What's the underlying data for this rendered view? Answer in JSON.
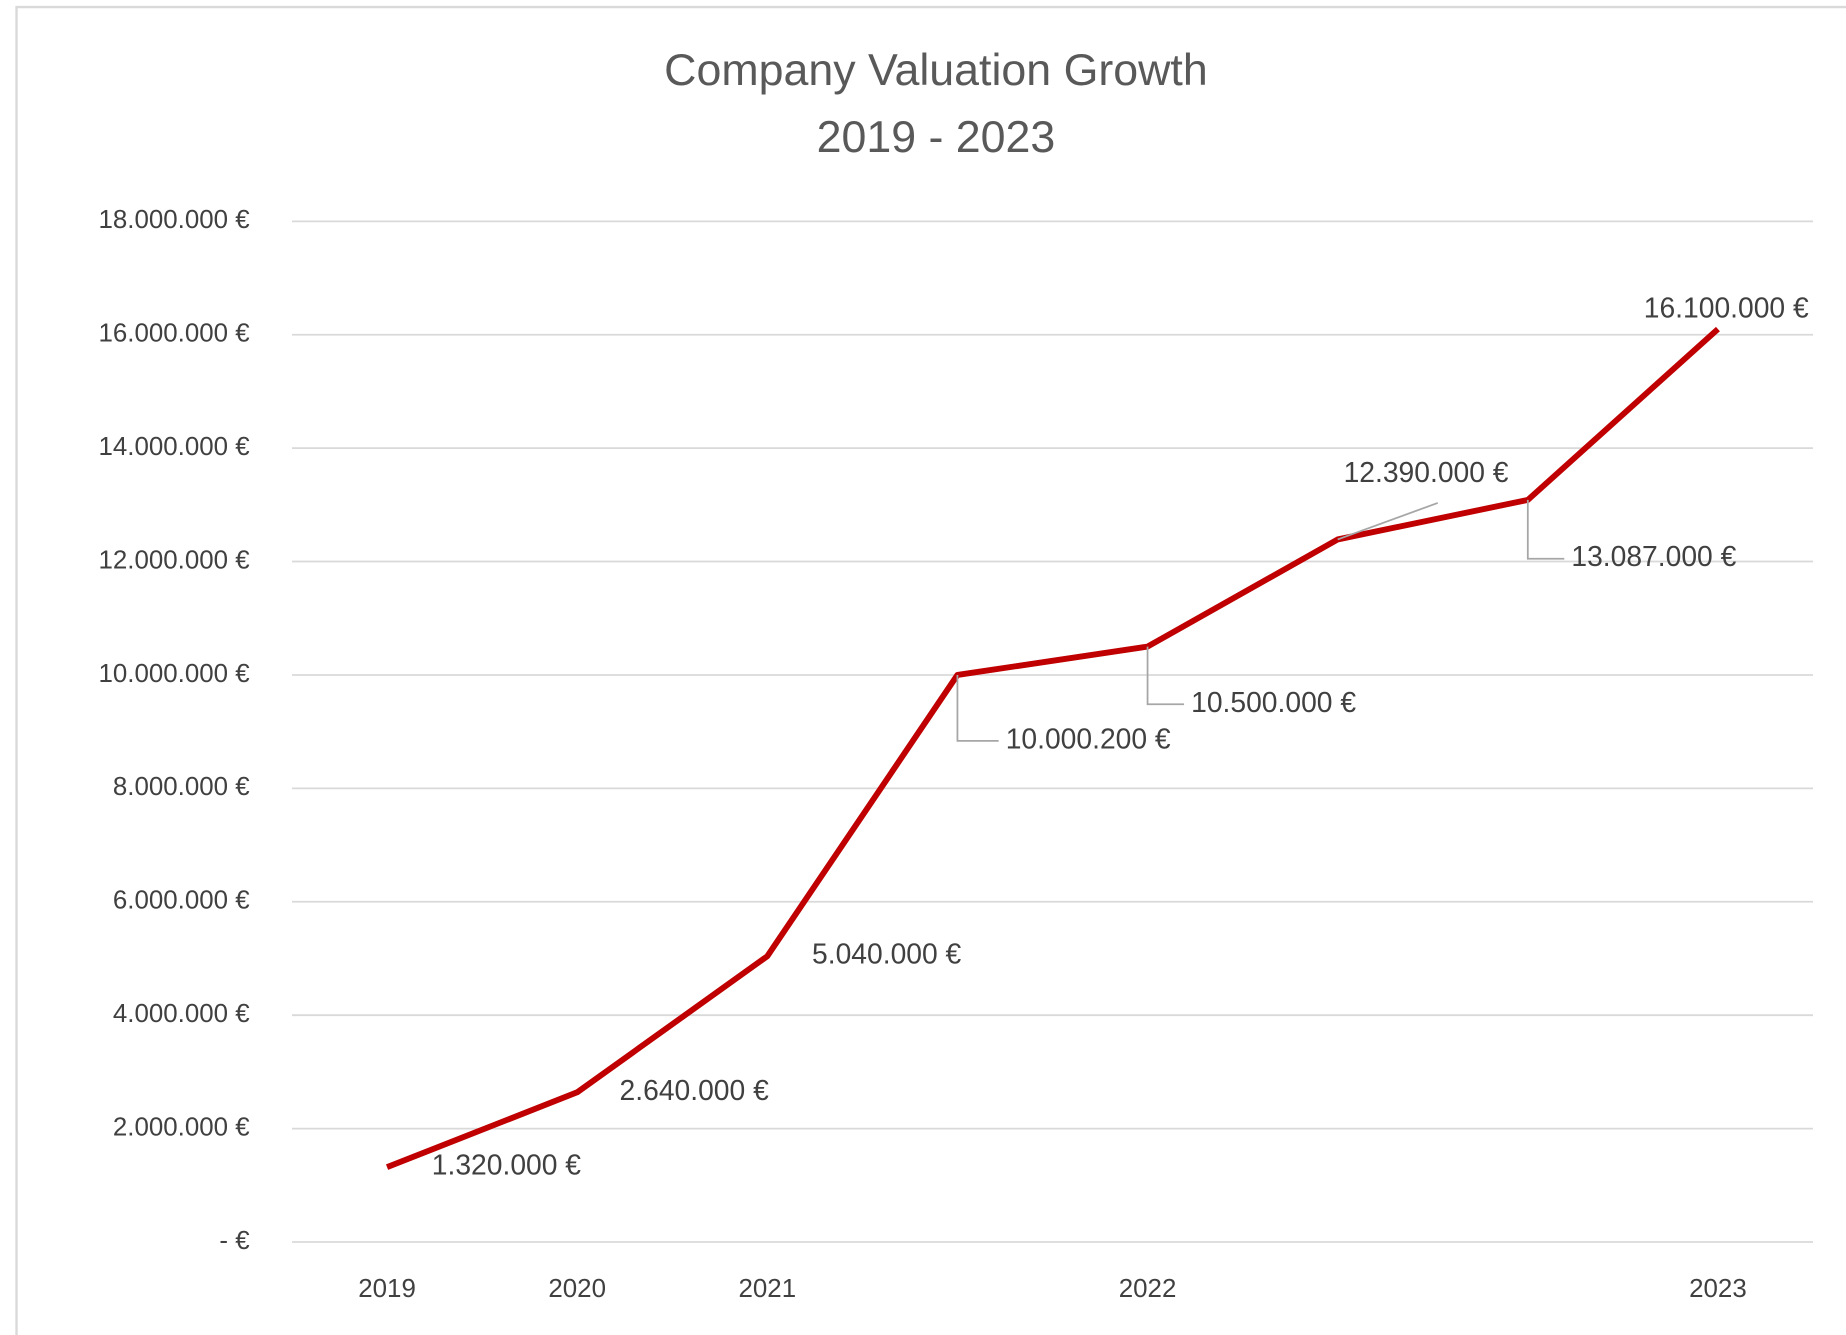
{
  "chart_data": {
    "type": "line",
    "title": "Company Valuation Growth",
    "subtitle": "2019 - 2023",
    "categories": [
      "2019",
      "2020",
      "2021",
      null,
      "2022",
      null,
      null,
      "2023"
    ],
    "series": [
      {
        "name": "Company Valuation",
        "color": "#c00000",
        "values": [
          1320000,
          2640000,
          5040000,
          10000200,
          10500000,
          12390000,
          13087000,
          16100000
        ],
        "value_labels": [
          "1.320.000 €",
          "2.640.000 €",
          "5.040.000 €",
          "10.000.200 €",
          "10.500.000 €",
          "12.390.000 €",
          "13.087.000 €",
          "16.100.000 €"
        ]
      }
    ],
    "ylim": [
      0,
      18000000
    ],
    "yticks": [
      {
        "value": 0,
        "label": "-  €"
      },
      {
        "value": 2000000,
        "label": "2.000.000 €"
      },
      {
        "value": 4000000,
        "label": "4.000.000 €"
      },
      {
        "value": 6000000,
        "label": "6.000.000 €"
      },
      {
        "value": 8000000,
        "label": "8.000.000 €"
      },
      {
        "value": 10000000,
        "label": "10.000.000 €"
      },
      {
        "value": 12000000,
        "label": "12.000.000 €"
      },
      {
        "value": 14000000,
        "label": "14.000.000 €"
      },
      {
        "value": 16000000,
        "label": "16.000.000 €"
      },
      {
        "value": 18000000,
        "label": "18.000.000 €"
      }
    ],
    "grid": true
  }
}
